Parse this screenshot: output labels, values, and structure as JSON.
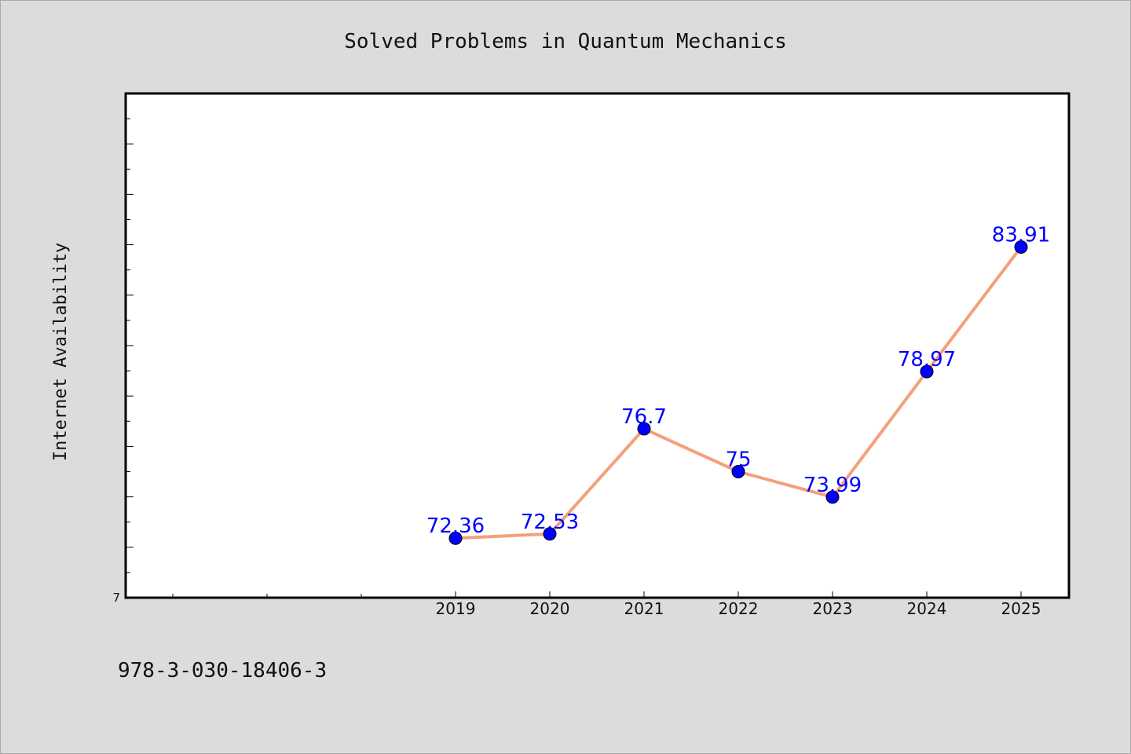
{
  "chart_data": {
    "type": "line",
    "title": "Solved Problems in Quantum Mechanics",
    "xlabel": "",
    "ylabel": "Internet Availability",
    "x": [
      "2019",
      "2020",
      "2021",
      "2022",
      "2023",
      "2024",
      "2025"
    ],
    "series": [
      {
        "values": [
          72.36,
          72.53,
          76.7,
          75,
          73.99,
          78.97,
          83.91
        ]
      }
    ],
    "data_labels": [
      "72.36",
      "72.53",
      "76.7",
      "75",
      "73.99",
      "78.97",
      "83.91"
    ],
    "x_slots": 10,
    "ylim": [
      70,
      90
    ],
    "y_tick_label": "7",
    "grid": false,
    "legend": "none",
    "colors": {
      "line": "#f4a07a",
      "marker": "#0000ff",
      "label": "#0000ff",
      "background": "#dcdcdc",
      "plot_bg": "#ffffff"
    }
  },
  "footer": {
    "isbn": "978-3-030-18406-3"
  }
}
